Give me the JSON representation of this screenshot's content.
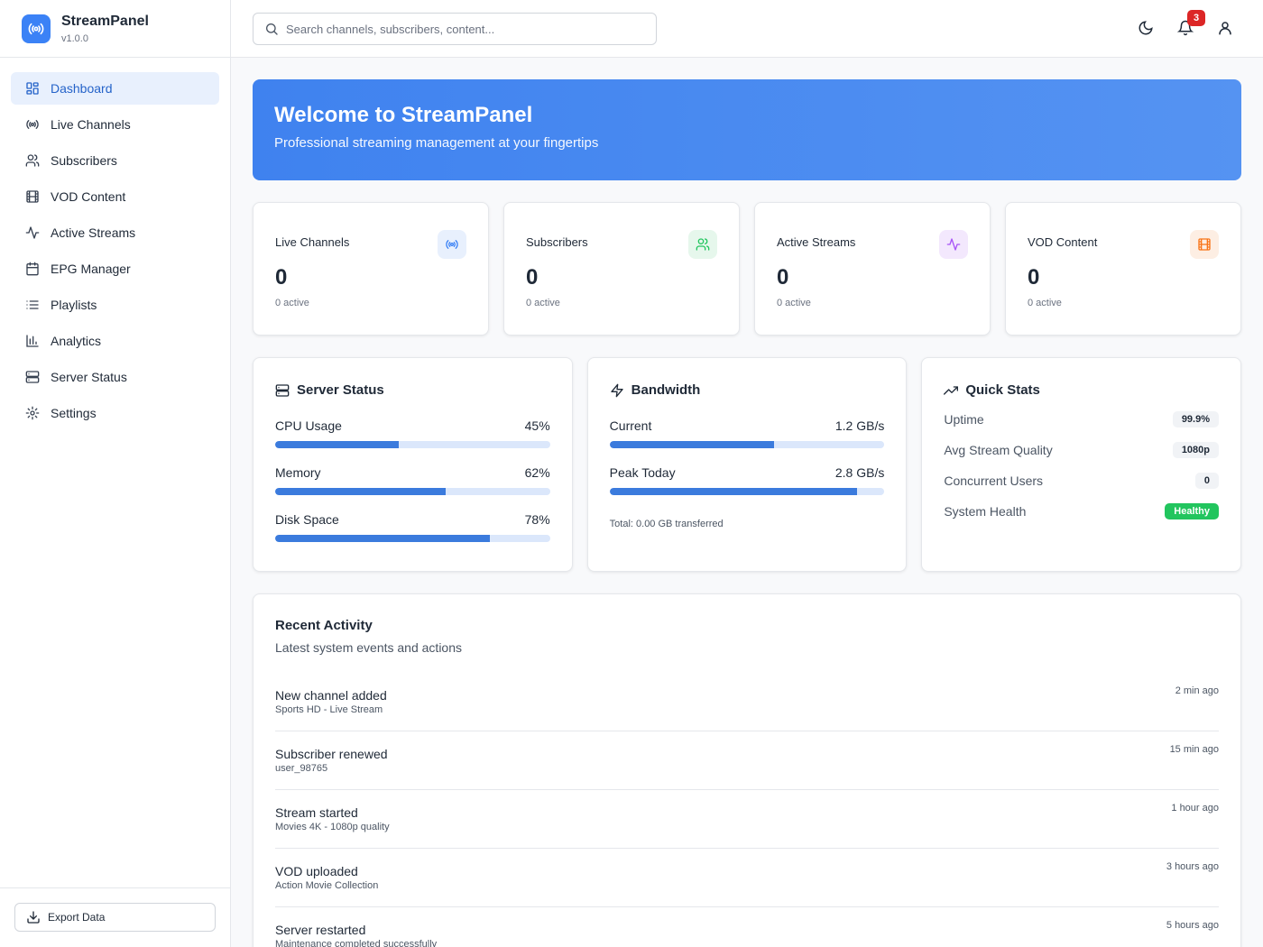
{
  "brand": {
    "name": "StreamPanel",
    "version": "v1.0.0",
    "accent": "#3b82f6"
  },
  "sidebar": {
    "items": [
      {
        "label": "Dashboard",
        "icon": "dashboard-grid-icon",
        "active": true
      },
      {
        "label": "Live Channels",
        "icon": "broadcast-icon"
      },
      {
        "label": "Subscribers",
        "icon": "users-icon"
      },
      {
        "label": "VOD Content",
        "icon": "film-icon"
      },
      {
        "label": "Active Streams",
        "icon": "activity-icon"
      },
      {
        "label": "EPG Manager",
        "icon": "calendar-icon"
      },
      {
        "label": "Playlists",
        "icon": "list-icon"
      },
      {
        "label": "Analytics",
        "icon": "bar-chart-icon"
      },
      {
        "label": "Server Status",
        "icon": "server-icon"
      },
      {
        "label": "Settings",
        "icon": "gear-icon"
      }
    ],
    "export_label": "Export Data"
  },
  "topbar": {
    "search_placeholder": "Search channels, subscribers, content...",
    "notification_count": "3",
    "icons": [
      "moon-icon",
      "bell-icon",
      "user-icon"
    ]
  },
  "hero": {
    "title": "Welcome to StreamPanel",
    "subtitle": "Professional streaming management at your fingertips"
  },
  "stats": [
    {
      "label": "Live Channels",
      "value": "0",
      "sub": "0 active",
      "icon": "broadcast-icon",
      "color": "#3b82f6",
      "bg": "#e8f0fd"
    },
    {
      "label": "Subscribers",
      "value": "0",
      "sub": "0 active",
      "icon": "users-icon",
      "color": "#22c55e",
      "bg": "#e6f7ec"
    },
    {
      "label": "Active Streams",
      "value": "0",
      "sub": "0 active",
      "icon": "activity-icon",
      "color": "#a855f7",
      "bg": "#f3e8fd"
    },
    {
      "label": "VOD Content",
      "value": "0",
      "sub": "0 active",
      "icon": "film-icon",
      "color": "#f97316",
      "bg": "#fdeee3"
    }
  ],
  "server_status": {
    "title": "Server Status",
    "meters": [
      {
        "label": "CPU Usage",
        "value": "45%",
        "fraction": 0.45
      },
      {
        "label": "Memory",
        "value": "62%",
        "fraction": 0.62
      },
      {
        "label": "Disk Space",
        "value": "78%",
        "fraction": 0.78
      }
    ]
  },
  "bandwidth": {
    "title": "Bandwidth",
    "meters": [
      {
        "label": "Current",
        "value": "1.2 GB/s",
        "fraction": 0.6
      },
      {
        "label": "Peak Today",
        "value": "2.8 GB/s",
        "fraction": 0.9
      }
    ],
    "total": "Total: 0.00 GB transferred"
  },
  "quick_stats": {
    "title": "Quick Stats",
    "rows": [
      {
        "label": "Uptime",
        "value": "99.9%"
      },
      {
        "label": "Avg Stream Quality",
        "value": "1080p"
      },
      {
        "label": "Concurrent Users",
        "value": "0"
      },
      {
        "label": "System Health",
        "value": "Healthy",
        "status": "green"
      }
    ]
  },
  "activity": {
    "title": "Recent Activity",
    "subtitle": "Latest system events and actions",
    "items": [
      {
        "title": "New channel added",
        "detail": "Sports HD - Live Stream",
        "time": "2 min ago"
      },
      {
        "title": "Subscriber renewed",
        "detail": "user_98765",
        "time": "15 min ago"
      },
      {
        "title": "Stream started",
        "detail": "Movies 4K - 1080p quality",
        "time": "1 hour ago"
      },
      {
        "title": "VOD uploaded",
        "detail": "Action Movie Collection",
        "time": "3 hours ago"
      },
      {
        "title": "Server restarted",
        "detail": "Maintenance completed successfully",
        "time": "5 hours ago"
      }
    ]
  }
}
